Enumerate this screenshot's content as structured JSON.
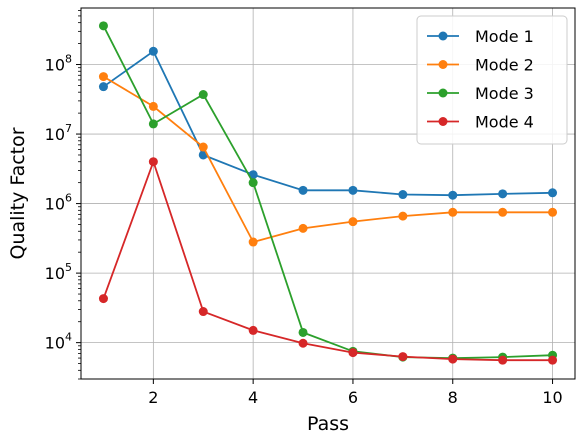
{
  "chart_data": {
    "type": "line",
    "xlabel": "Pass",
    "ylabel": "Quality Factor",
    "xlim": [
      0.55,
      10.45
    ],
    "ylim": [
      3000,
      650000000
    ],
    "yscale": "log",
    "grid": true,
    "legend_position": "top-right",
    "x": [
      1,
      2,
      3,
      4,
      5,
      6,
      7,
      8,
      9,
      10
    ],
    "x_ticks": [
      2,
      4,
      6,
      8,
      10
    ],
    "y_ticks": [
      10000,
      100000,
      1000000,
      10000000,
      100000000
    ],
    "y_tick_labels": [
      {
        "base": "10",
        "exp": "4"
      },
      {
        "base": "10",
        "exp": "5"
      },
      {
        "base": "10",
        "exp": "6"
      },
      {
        "base": "10",
        "exp": "7"
      },
      {
        "base": "10",
        "exp": "8"
      }
    ],
    "series": [
      {
        "name": "Mode 1",
        "color": "#1f77b4",
        "values": [
          48000000,
          155000000,
          5000000,
          2600000,
          1550000,
          1550000,
          1350000,
          1320000,
          1380000,
          1430000
        ]
      },
      {
        "name": "Mode 2",
        "color": "#ff7f0e",
        "values": [
          67000000,
          25000000,
          6500000,
          280000,
          440000,
          550000,
          660000,
          750000,
          750000,
          750000
        ]
      },
      {
        "name": "Mode 3",
        "color": "#2ca02c",
        "values": [
          360000000,
          14000000,
          37000000,
          2000000,
          14000,
          7500,
          6200,
          6000,
          6200,
          6600
        ]
      },
      {
        "name": "Mode 4",
        "color": "#d62728",
        "values": [
          43000,
          4000000,
          28000,
          15000,
          9800,
          7200,
          6300,
          5800,
          5600,
          5600
        ]
      }
    ]
  }
}
